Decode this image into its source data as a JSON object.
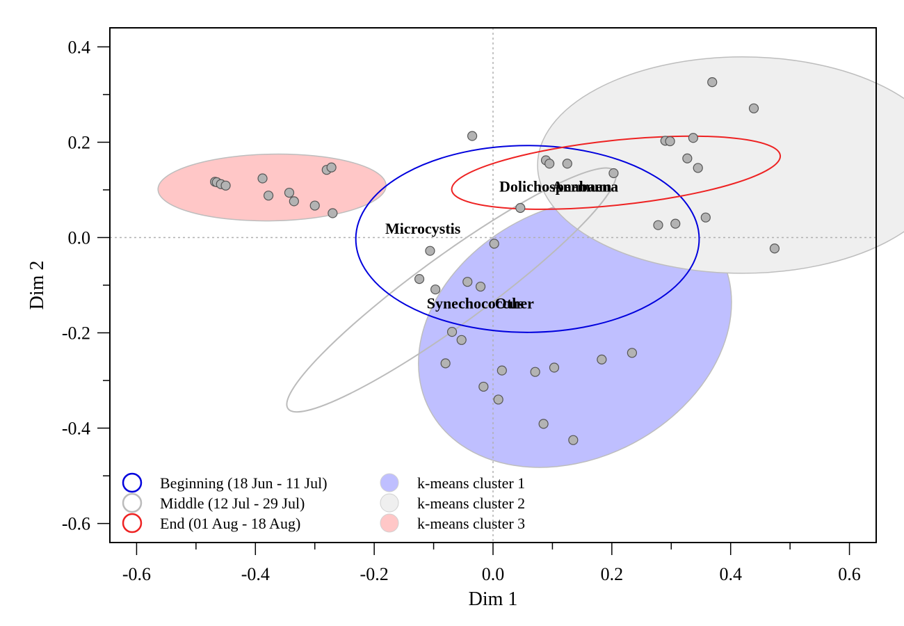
{
  "chart_data": {
    "type": "scatter",
    "xlabel": "Dim 1",
    "ylabel": "Dim 2",
    "xlim": [
      -0.645,
      0.645
    ],
    "ylim": [
      -0.64,
      0.44
    ],
    "xticks": [
      -0.6,
      -0.4,
      -0.2,
      0.0,
      0.2,
      0.4,
      0.6
    ],
    "xtick_labels": [
      "-0.6",
      "-0.4",
      "-0.2",
      "0.0",
      "0.2",
      "0.4",
      "0.6"
    ],
    "yticks": [
      -0.6,
      -0.4,
      -0.2,
      0.0,
      0.2,
      0.4
    ],
    "ytick_labels": [
      "-0.6",
      "-0.4",
      "-0.2",
      "0.0",
      "0.2",
      "0.4"
    ],
    "reference_lines": {
      "x": 0,
      "y": 0,
      "style": "dotted",
      "color": "#b0b0b0"
    },
    "grid": false,
    "point_color": "#b3b3b3",
    "points": [
      [
        -0.468,
        0.117
      ],
      [
        -0.465,
        0.116
      ],
      [
        -0.458,
        0.112
      ],
      [
        -0.45,
        0.109
      ],
      [
        -0.388,
        0.124
      ],
      [
        -0.378,
        0.088
      ],
      [
        -0.343,
        0.094
      ],
      [
        -0.335,
        0.076
      ],
      [
        -0.3,
        0.067
      ],
      [
        -0.28,
        0.142
      ],
      [
        -0.272,
        0.147
      ],
      [
        -0.27,
        0.051
      ],
      [
        -0.035,
        0.213
      ],
      [
        0.046,
        0.062
      ],
      [
        0.089,
        0.162
      ],
      [
        0.095,
        0.155
      ],
      [
        0.125,
        0.155
      ],
      [
        0.203,
        0.135
      ],
      [
        0.278,
        0.026
      ],
      [
        0.29,
        0.203
      ],
      [
        0.298,
        0.202
      ],
      [
        0.307,
        0.029
      ],
      [
        0.327,
        0.166
      ],
      [
        0.337,
        0.209
      ],
      [
        0.345,
        0.146
      ],
      [
        0.358,
        0.042
      ],
      [
        0.369,
        0.326
      ],
      [
        0.439,
        0.271
      ],
      [
        0.474,
        -0.023
      ],
      [
        -0.106,
        -0.028
      ],
      [
        -0.124,
        -0.087
      ],
      [
        -0.097,
        -0.109
      ],
      [
        -0.043,
        -0.093
      ],
      [
        -0.021,
        -0.103
      ],
      [
        0.002,
        -0.013
      ],
      [
        -0.069,
        -0.198
      ],
      [
        -0.053,
        -0.215
      ],
      [
        -0.08,
        -0.264
      ],
      [
        -0.016,
        -0.313
      ],
      [
        0.015,
        -0.279
      ],
      [
        0.071,
        -0.282
      ],
      [
        0.103,
        -0.273
      ],
      [
        0.183,
        -0.256
      ],
      [
        0.234,
        -0.242
      ],
      [
        0.009,
        -0.34
      ],
      [
        0.085,
        -0.391
      ],
      [
        0.135,
        -0.425
      ]
    ],
    "variable_labels": [
      {
        "text": "Microcystis",
        "x": -0.118,
        "y": 0.02
      },
      {
        "text": "Dolichospermum",
        "x": 0.105,
        "y": 0.108
      },
      {
        "text": "Anabaena",
        "x": 0.155,
        "y": 0.108
      },
      {
        "text": "Synechococcus",
        "x": -0.03,
        "y": -0.137
      },
      {
        "text": "Other",
        "x": 0.036,
        "y": -0.137
      }
    ],
    "ellipses": [
      {
        "name": "k-means cluster 1",
        "type": "cluster",
        "cx": 0.138,
        "cy": -0.2,
        "rx": 0.21,
        "ry": 0.345,
        "angle": 62,
        "fill": "#bfbfff",
        "stroke": "#bdbdbd",
        "filled": true
      },
      {
        "name": "k-means cluster 2",
        "type": "cluster",
        "cx": 0.42,
        "cy": 0.152,
        "rx": 0.345,
        "ry": 0.227,
        "angle": 0,
        "fill": "#efefef",
        "stroke": "#bdbdbd",
        "filled": true
      },
      {
        "name": "k-means cluster 3",
        "type": "cluster",
        "cx": -0.372,
        "cy": 0.105,
        "rx": 0.192,
        "ry": 0.07,
        "angle": -1,
        "fill": "#ffc7c7",
        "stroke": "#bdbdbd",
        "filled": true
      },
      {
        "name": "Middle (12 Jul - 29 Jul)",
        "type": "period",
        "cx": -0.07,
        "cy": -0.11,
        "rx": 0.34,
        "ry": 0.072,
        "angle": -36,
        "stroke": "#bbbbbb",
        "filled": false
      },
      {
        "name": "Beginning (18 Jun - 11 Jul)",
        "type": "period",
        "cx": 0.058,
        "cy": -0.003,
        "rx": 0.289,
        "ry": 0.196,
        "angle": 0,
        "stroke": "#0000dd",
        "filled": false
      },
      {
        "name": "End (01 Aug - 18 Aug)",
        "type": "period",
        "cx": 0.207,
        "cy": 0.136,
        "rx": 0.278,
        "ry": 0.068,
        "angle": -6,
        "stroke": "#ee2222",
        "filled": false
      }
    ],
    "legend": {
      "placement": "bottom-left",
      "entries": [
        {
          "label": "Beginning (18 Jun - 11 Jul)",
          "color": "#0000dd",
          "filled": false
        },
        {
          "label": "Middle (12 Jul - 29 Jul)",
          "color": "#bbbbbb",
          "filled": false
        },
        {
          "label": "End (01 Aug - 18 Aug)",
          "color": "#ee2222",
          "filled": false
        },
        {
          "label": "k-means cluster 1",
          "color": "#bfbfff",
          "filled": true
        },
        {
          "label": "k-means cluster 2",
          "color": "#efefef",
          "filled": true
        },
        {
          "label": "k-means cluster 3",
          "color": "#ffc7c7",
          "filled": true
        }
      ]
    }
  }
}
